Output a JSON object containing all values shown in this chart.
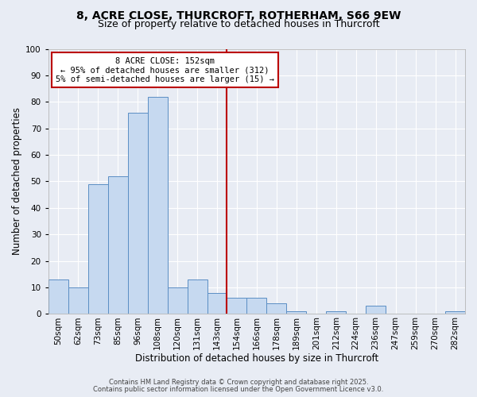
{
  "title1": "8, ACRE CLOSE, THURCROFT, ROTHERHAM, S66 9EW",
  "title2": "Size of property relative to detached houses in Thurcroft",
  "xlabel": "Distribution of detached houses by size in Thurcroft",
  "ylabel": "Number of detached properties",
  "bar_labels": [
    "50sqm",
    "62sqm",
    "73sqm",
    "85sqm",
    "96sqm",
    "108sqm",
    "120sqm",
    "131sqm",
    "143sqm",
    "154sqm",
    "166sqm",
    "178sqm",
    "189sqm",
    "201sqm",
    "212sqm",
    "224sqm",
    "236sqm",
    "247sqm",
    "259sqm",
    "270sqm",
    "282sqm"
  ],
  "bar_heights": [
    13,
    10,
    49,
    52,
    76,
    82,
    10,
    13,
    8,
    6,
    6,
    4,
    1,
    0,
    1,
    0,
    3,
    0,
    0,
    0,
    1
  ],
  "bar_color": "#c6d9f0",
  "bar_edge_color": "#5b8ec4",
  "ylim": [
    0,
    100
  ],
  "yticks": [
    0,
    10,
    20,
    30,
    40,
    50,
    60,
    70,
    80,
    90,
    100
  ],
  "vline_color": "#bb0000",
  "annotation_lines": [
    "8 ACRE CLOSE: 152sqm",
    "← 95% of detached houses are smaller (312)",
    "5% of semi-detached houses are larger (15) →"
  ],
  "annotation_box_edgecolor": "#bb0000",
  "annotation_box_facecolor": "#ffffff",
  "bg_color": "#e8ecf4",
  "plot_bg_color": "#e8ecf4",
  "grid_color": "#ffffff",
  "footer1": "Contains HM Land Registry data © Crown copyright and database right 2025.",
  "footer2": "Contains public sector information licensed under the Open Government Licence v3.0.",
  "title1_fontsize": 10,
  "title2_fontsize": 9,
  "xlabel_fontsize": 8.5,
  "ylabel_fontsize": 8.5,
  "tick_fontsize": 7.5,
  "footer_fontsize": 6.0
}
